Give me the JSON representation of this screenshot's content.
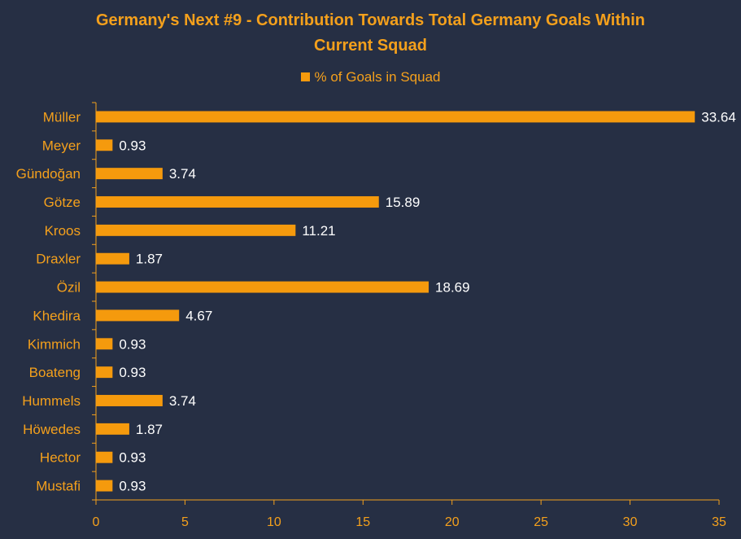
{
  "chart_data": {
    "type": "bar",
    "orientation": "horizontal",
    "title_line1": "Germany's Next #9 - Contribution Towards Total Germany Goals Within",
    "title_line2": "Current Squad",
    "legend": "% of Goals in Squad",
    "legend_position": "top",
    "categories": [
      "Müller",
      "Meyer",
      "Gündoğan",
      "Götze",
      "Kroos",
      "Draxler",
      "Özil",
      "Khedira",
      "Kimmich",
      "Boateng",
      "Hummels",
      "Höwedes",
      "Hector",
      "Mustafi"
    ],
    "series": [
      {
        "name": "% of Goals in Squad",
        "values": [
          33.64,
          0.93,
          3.74,
          15.89,
          11.21,
          1.87,
          18.69,
          4.67,
          0.93,
          0.93,
          3.74,
          1.87,
          0.93,
          0.93
        ]
      }
    ],
    "xlim": [
      0,
      35
    ],
    "xticks": [
      0,
      5,
      10,
      15,
      20,
      25,
      30,
      35
    ],
    "grid": false,
    "colors": {
      "bar": "#f59a0d",
      "text": "#f4a01c",
      "data_label": "#ffffff",
      "axis": "#f4a01c",
      "background": "#262f44"
    }
  }
}
